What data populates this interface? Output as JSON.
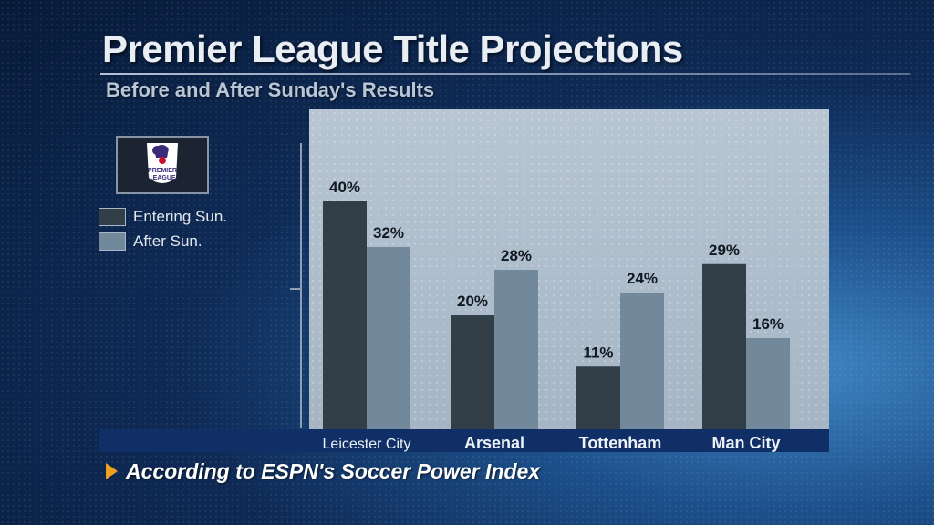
{
  "title": "Premier League Title Projections",
  "subtitle": "Before and After Sunday's Results",
  "logo_text": [
    "PREMIER",
    "LEAGUE"
  ],
  "footnote": "According to ESPN's Soccer Power Index",
  "colors": {
    "entering": "#323e48",
    "after": "#71899b",
    "accent": "#f0a020"
  },
  "chart_data": {
    "type": "bar",
    "title": "Premier League Title Projections",
    "subtitle": "Before and After Sunday's Results",
    "categories": [
      "Leicester City",
      "Arsenal",
      "Tottenham",
      "Man City"
    ],
    "series": [
      {
        "name": "Entering Sun.",
        "values": [
          40,
          20,
          11,
          29
        ],
        "labels": [
          "40%",
          "20%",
          "11%",
          "29%"
        ]
      },
      {
        "name": "After Sun.",
        "values": [
          32,
          28,
          24,
          16
        ],
        "labels": [
          "32%",
          "28%",
          "24%",
          "16%"
        ]
      }
    ],
    "unit": "%",
    "ylim": [
      0,
      50
    ],
    "legend_position": "left",
    "grid": false
  }
}
